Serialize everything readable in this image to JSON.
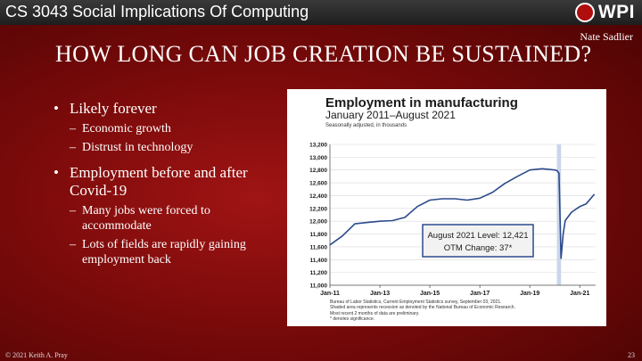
{
  "header": {
    "course": "CS 3043 Social Implications Of Computing",
    "logo_text": "WPI",
    "author": "Nate Sadlier"
  },
  "slide": {
    "title": "HOW LONG CAN JOB CREATION BE SUSTAINED?",
    "bullets": [
      {
        "text": "Likely forever",
        "sub": [
          "Economic growth",
          "Distrust in technology"
        ]
      },
      {
        "text": "Employment before and after Covid-19",
        "sub": [
          "Many jobs were forced to accommodate",
          "Lots of fields are rapidly gaining employment back"
        ]
      }
    ]
  },
  "chart_data": {
    "type": "line",
    "title": "Employment in manufacturing",
    "subtitle": "January 2011–August 2021",
    "note": "Seasonally adjusted, in thousands",
    "ylim": [
      11000,
      13200
    ],
    "yticks": [
      "13,200",
      "13,000",
      "12,800",
      "12,600",
      "12,400",
      "12,200",
      "12,000",
      "11,800",
      "11,600",
      "11,400",
      "11,200",
      "11,000"
    ],
    "xticks": [
      "Jan-11",
      "Jan-13",
      "Jan-15",
      "Jan-17",
      "Jan-19",
      "Jan-21"
    ],
    "recession": [
      "2020-02",
      "2020-04"
    ],
    "series": [
      {
        "color": "#2b4a8c",
        "x": [
          "2011-01",
          "2011-07",
          "2012-01",
          "2012-07",
          "2013-01",
          "2013-07",
          "2014-01",
          "2014-07",
          "2015-01",
          "2015-07",
          "2016-01",
          "2016-07",
          "2017-01",
          "2017-07",
          "2018-01",
          "2018-07",
          "2019-01",
          "2019-07",
          "2020-01",
          "2020-02",
          "2020-03",
          "2020-04",
          "2020-05",
          "2020-06",
          "2020-09",
          "2021-01",
          "2021-04",
          "2021-08"
        ],
        "y": [
          11630,
          11770,
          11960,
          11980,
          12000,
          12010,
          12060,
          12230,
          12330,
          12350,
          12350,
          12330,
          12360,
          12450,
          12590,
          12700,
          12800,
          12820,
          12800,
          12790,
          12750,
          11420,
          11800,
          12010,
          12140,
          12230,
          12270,
          12421
        ]
      }
    ],
    "annotation": [
      "August 2021 Level: 12,421",
      "OTM Change: 37*"
    ],
    "source": [
      "Bureau of Labor Statistics, Current Employment Statistics survey, September 03, 2021.",
      "Shaded area represents recession as denoted by the National Bureau of Economic Research.",
      "Most recent 2 months of data are preliminary.",
      "* denotes significance."
    ]
  },
  "footer": {
    "copyright": "© 2021 Keith A. Pray",
    "page": "23"
  }
}
